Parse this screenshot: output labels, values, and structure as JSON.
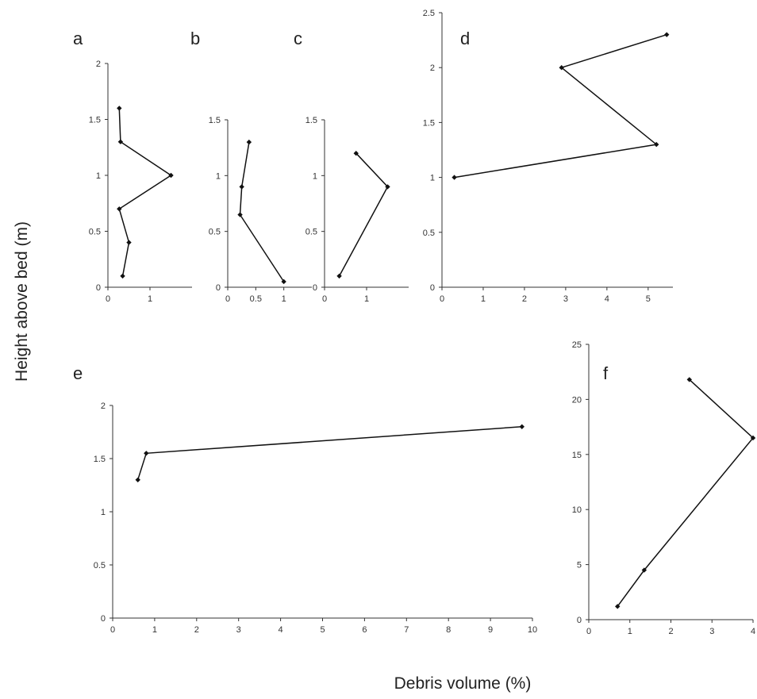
{
  "figure": {
    "ylabel": "Height above bed (m)",
    "xlabel": "Debris volume (%)"
  },
  "chart_data": [
    {
      "panel": "a",
      "type": "line",
      "x": [
        0.35,
        0.5,
        0.27,
        1.5,
        0.3,
        0.27
      ],
      "y": [
        0.1,
        0.4,
        0.7,
        1.0,
        1.3,
        1.6
      ],
      "xlim": [
        0,
        2
      ],
      "ylim": [
        0,
        2
      ],
      "xticks": [
        0,
        1
      ],
      "yticks": [
        0,
        0.5,
        1,
        1.5,
        2
      ]
    },
    {
      "panel": "b",
      "type": "line",
      "x": [
        1.0,
        0.22,
        0.25,
        0.38
      ],
      "y": [
        0.05,
        0.65,
        0.9,
        1.3
      ],
      "xlim": [
        0,
        1.5
      ],
      "ylim": [
        0,
        1.5
      ],
      "xticks": [
        0,
        0.5,
        1
      ],
      "yticks": [
        0,
        0.5,
        1,
        1.5
      ]
    },
    {
      "panel": "c",
      "type": "line",
      "x": [
        0.35,
        1.5,
        0.75
      ],
      "y": [
        0.1,
        0.9,
        1.2
      ],
      "xlim": [
        0,
        2
      ],
      "ylim": [
        0,
        1.5
      ],
      "xticks": [
        0,
        1
      ],
      "yticks": [
        0,
        0.5,
        1,
        1.5
      ]
    },
    {
      "panel": "d",
      "type": "line",
      "x": [
        0.3,
        5.2,
        2.9,
        5.45
      ],
      "y": [
        1.0,
        1.3,
        2.0,
        2.3
      ],
      "xlim": [
        0,
        5.6
      ],
      "ylim": [
        0,
        2.5
      ],
      "xticks": [
        0,
        1,
        2,
        3,
        4,
        5
      ],
      "yticks": [
        0,
        0.5,
        1,
        1.5,
        2,
        2.5
      ]
    },
    {
      "panel": "e",
      "type": "line",
      "x": [
        0.6,
        0.8,
        9.75
      ],
      "y": [
        1.3,
        1.55,
        1.8
      ],
      "xlim": [
        0,
        10
      ],
      "ylim": [
        0,
        2
      ],
      "xticks": [
        0,
        1,
        2,
        3,
        4,
        5,
        6,
        7,
        8,
        9,
        10
      ],
      "yticks": [
        0,
        0.5,
        1,
        1.5,
        2
      ]
    },
    {
      "panel": "f",
      "type": "line",
      "x": [
        0.7,
        1.35,
        4.0,
        2.45
      ],
      "y": [
        1.2,
        4.5,
        16.5,
        21.8
      ],
      "xlim": [
        0,
        4
      ],
      "ylim": [
        0,
        25
      ],
      "xticks": [
        0,
        1,
        2,
        3,
        4
      ],
      "yticks": [
        0,
        5,
        10,
        15,
        20,
        25
      ]
    }
  ]
}
